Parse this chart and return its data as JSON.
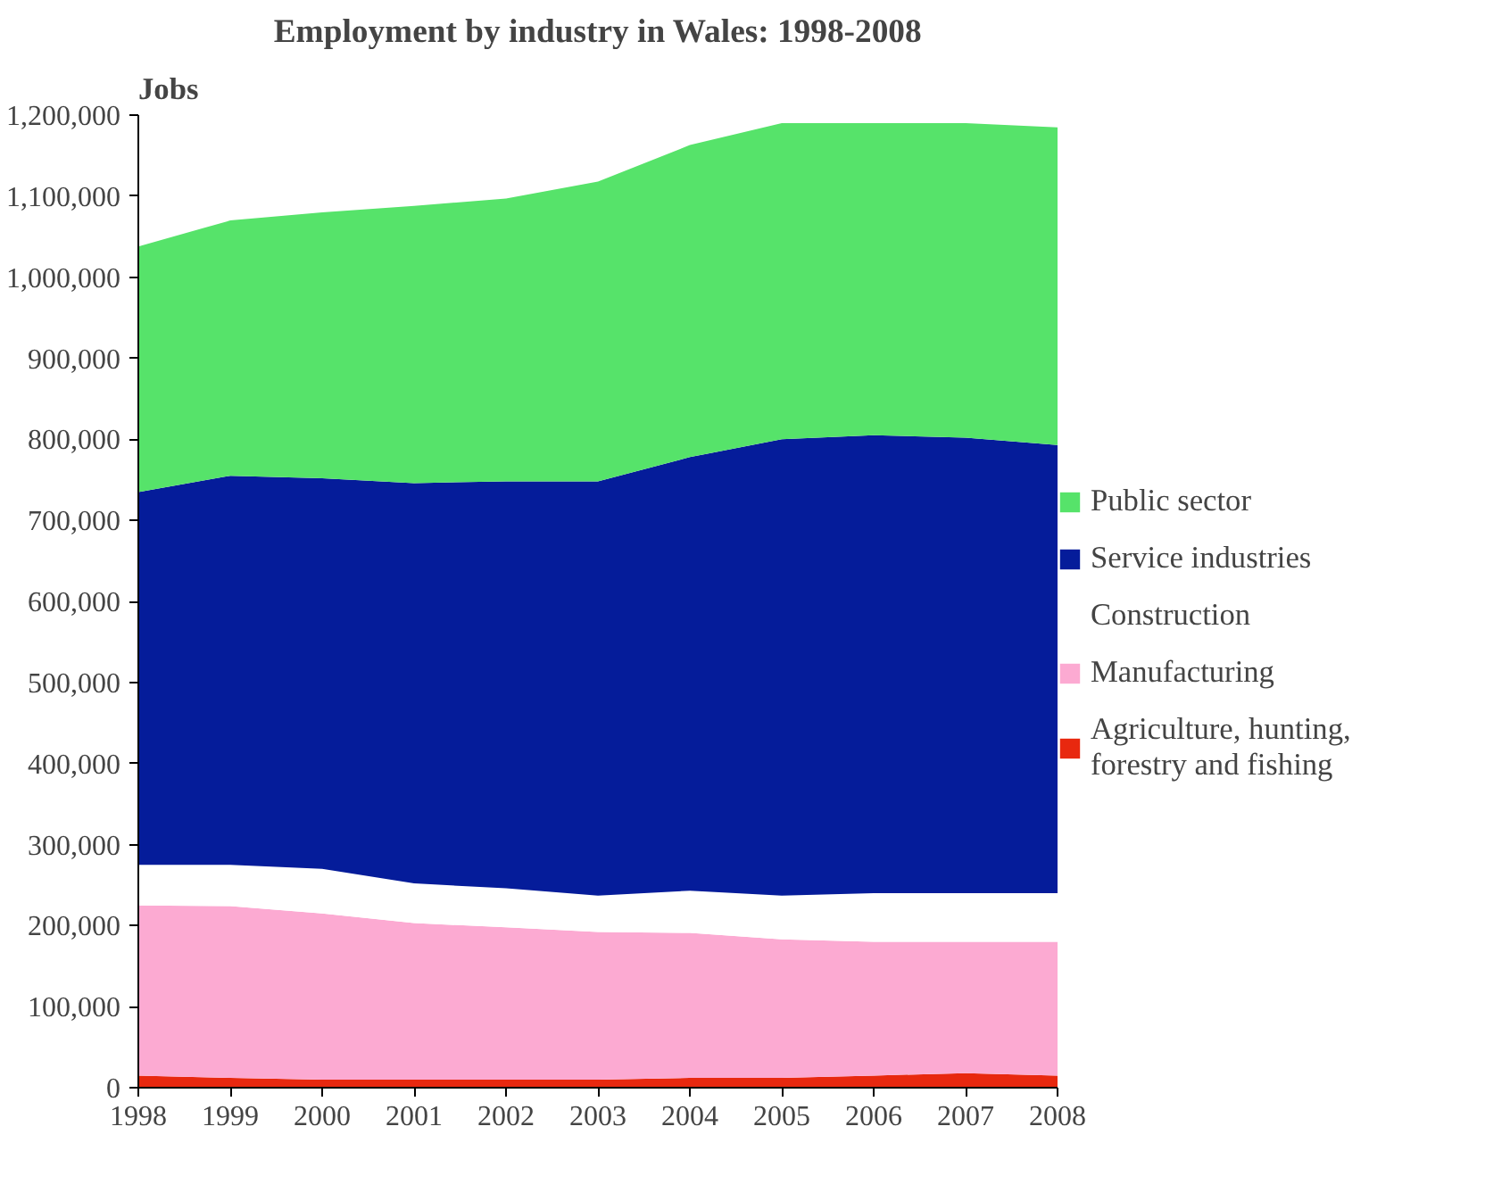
{
  "chart_data": {
    "type": "area",
    "stacked": true,
    "title": "Employment by industry in Wales: 1998-2008",
    "ylabel": "Jobs",
    "x": [
      1998,
      1999,
      2000,
      2001,
      2002,
      2003,
      2004,
      2005,
      2006,
      2007,
      2008
    ],
    "series": [
      {
        "name": "Agriculture, hunting, forestry and fishing",
        "color": "#e8280f",
        "values": [
          15000,
          12000,
          10000,
          10000,
          10000,
          10000,
          12000,
          12000,
          15000,
          18000,
          15000
        ]
      },
      {
        "name": "Manufacturing",
        "color": "#fcaad2",
        "values": [
          210000,
          212000,
          205000,
          193000,
          188000,
          182000,
          179000,
          171000,
          165000,
          162000,
          165000
        ]
      },
      {
        "name": "Construction",
        "color": "#ffffff",
        "values": [
          50000,
          51000,
          55000,
          49000,
          48000,
          45000,
          52000,
          54000,
          60000,
          60000,
          60000
        ]
      },
      {
        "name": "Service industries",
        "color": "#051c9a",
        "values": [
          460000,
          480000,
          482000,
          494000,
          502000,
          511000,
          535000,
          563000,
          565000,
          562000,
          553000
        ]
      },
      {
        "name": "Public sector",
        "color": "#56e36a",
        "values": [
          303000,
          315000,
          328000,
          342000,
          349000,
          370000,
          385000,
          390000,
          385000,
          388000,
          392000
        ]
      }
    ],
    "xlim": [
      1998,
      2008
    ],
    "xticks": [
      1998,
      1999,
      2000,
      2001,
      2002,
      2003,
      2004,
      2005,
      2006,
      2007,
      2008
    ],
    "ylim": [
      0,
      1200000
    ],
    "yticks": [
      {
        "value": 0,
        "label": "0"
      },
      {
        "value": 100000,
        "label": "100,000"
      },
      {
        "value": 200000,
        "label": "200,000"
      },
      {
        "value": 300000,
        "label": "300,000"
      },
      {
        "value": 400000,
        "label": "400,000"
      },
      {
        "value": 500000,
        "label": "500,000"
      },
      {
        "value": 600000,
        "label": "600,000"
      },
      {
        "value": 700000,
        "label": "700,000"
      },
      {
        "value": 800000,
        "label": "800,000"
      },
      {
        "value": 900000,
        "label": "900,000"
      },
      {
        "value": 1000000,
        "label": "1,000,000"
      },
      {
        "value": 1100000,
        "label": "1,100,000"
      },
      {
        "value": 1200000,
        "label": "1,200,000"
      }
    ],
    "grid": false,
    "legend": "right"
  }
}
